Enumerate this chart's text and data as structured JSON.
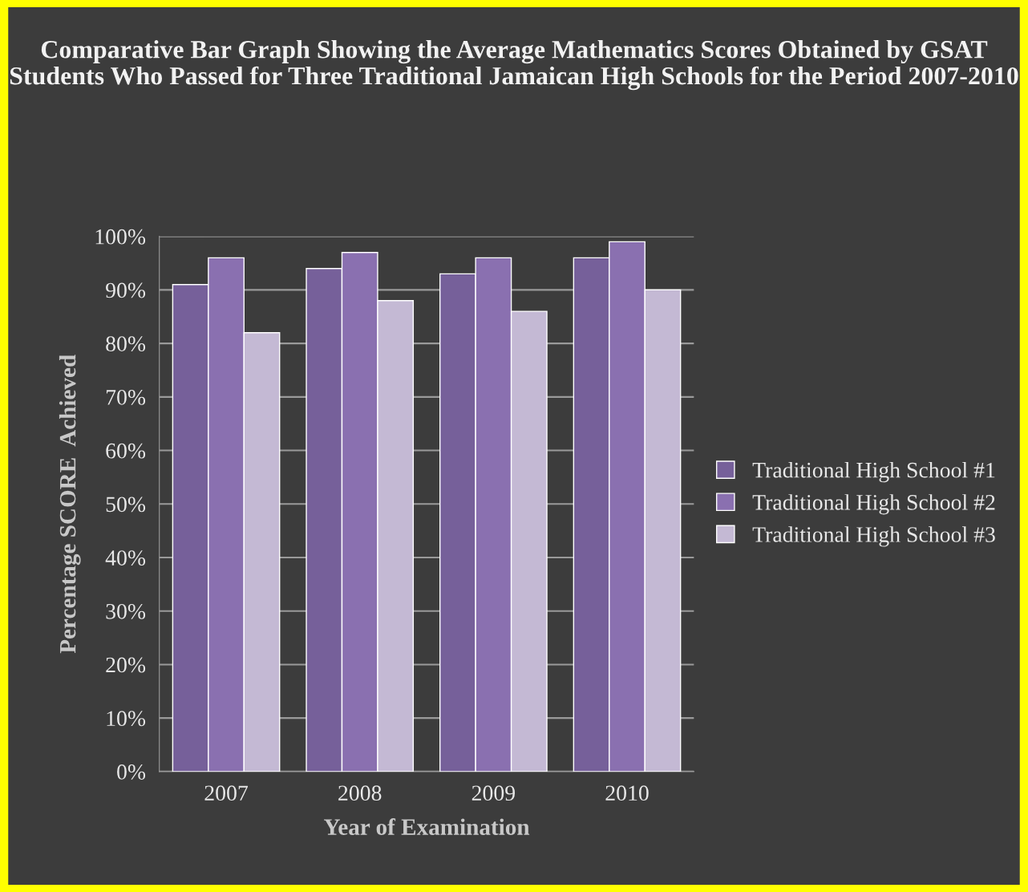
{
  "chart_data": {
    "type": "bar",
    "title": "Comparative Bar Graph Showing the Average Mathematics Scores Obtained by GSAT Students Who Passed for Three Traditional Jamaican High Schools for the Period 2007-2010",
    "xlabel": "Year of Examination",
    "ylabel": "Percentage SCORE  Achieved",
    "categories": [
      "2007",
      "2008",
      "2009",
      "2010"
    ],
    "series": [
      {
        "name": "Traditional High School #1",
        "color": "#76609a",
        "values": [
          91,
          94,
          93,
          96
        ]
      },
      {
        "name": "Traditional High School #2",
        "color": "#8a70b0",
        "values": [
          96,
          97,
          96,
          99
        ]
      },
      {
        "name": "Traditional High School #3",
        "color": "#c4b9d4",
        "values": [
          82,
          88,
          86,
          90
        ]
      }
    ],
    "ylim": [
      0,
      100
    ],
    "yticks": [
      {
        "value": 0,
        "label": "0%"
      },
      {
        "value": 10,
        "label": "10%"
      },
      {
        "value": 20,
        "label": "20%"
      },
      {
        "value": 30,
        "label": "30%"
      },
      {
        "value": 40,
        "label": "40%"
      },
      {
        "value": 50,
        "label": "50%"
      },
      {
        "value": 60,
        "label": "60%"
      },
      {
        "value": 70,
        "label": "70%"
      },
      {
        "value": 80,
        "label": "80%"
      },
      {
        "value": 90,
        "label": "90%"
      },
      {
        "value": 100,
        "label": "100%"
      }
    ],
    "grid": "y",
    "legend": "right"
  }
}
